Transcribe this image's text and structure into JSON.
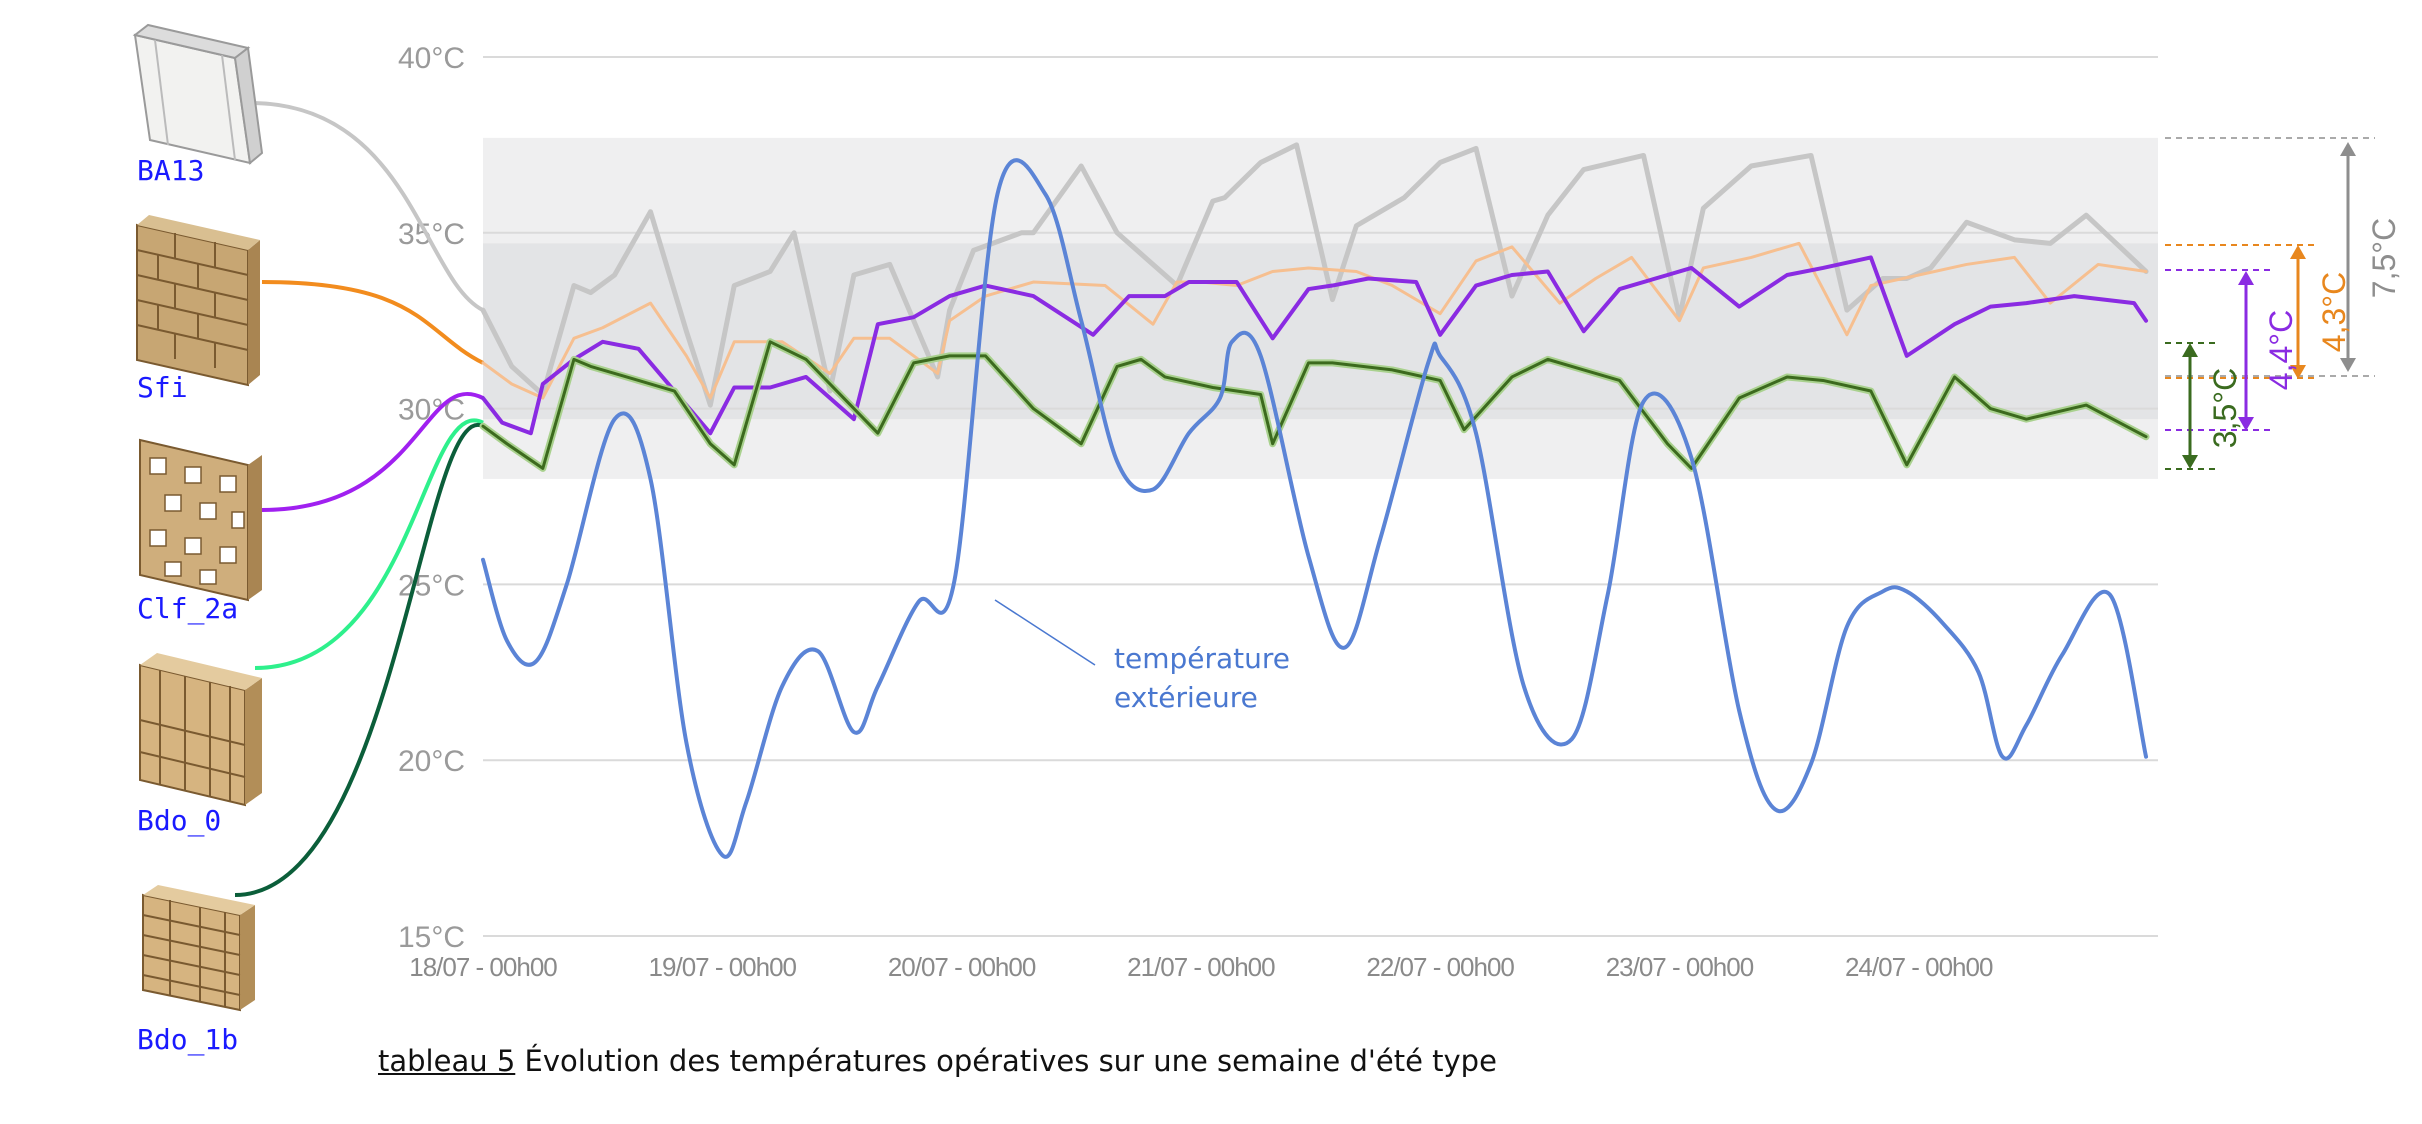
{
  "caption": {
    "tag": "tableau 5",
    "text": "Évolution des températures opératives sur une semaine d'été type"
  },
  "annotation": "température\nextérieure",
  "materials": [
    "BA13",
    "Sfi",
    "Clf_2a",
    "Bdo_0",
    "Bdo_1b"
  ],
  "deltas": [
    {
      "label": "7,5°C",
      "color": "#8e8e8e"
    },
    {
      "label": "4,3°C",
      "color": "#e8871e"
    },
    {
      "label": "4,4°C",
      "color": "#8a2be2"
    },
    {
      "label": "3,5°C",
      "color": "#3a6b1f"
    }
  ],
  "chart_data": {
    "type": "line",
    "ylim": [
      15,
      40
    ],
    "yticks": [
      "40°C",
      "35°C",
      "30°C",
      "25°C",
      "20°C",
      "15°C"
    ],
    "xlim": [
      0,
      7
    ],
    "xticks": [
      "18/07 - 00h00",
      "19/07 - 00h00",
      "20/07 - 00h00",
      "21/07 - 00h00",
      "22/07 - 00h00",
      "23/07 - 00h00",
      "24/07 - 00h00"
    ],
    "bands": [
      {
        "y0": 28.0,
        "y1": 37.7,
        "color": "#efeff0"
      },
      {
        "y0": 29.7,
        "y1": 34.7,
        "color": "#e3e4e6"
      }
    ],
    "series": [
      {
        "key": "BA13",
        "color": "#c6c6c6",
        "width": 5,
        "x": [
          0,
          0.12,
          0.25,
          0.38,
          0.45,
          0.55,
          0.7,
          0.85,
          0.95,
          1.05,
          1.2,
          1.3,
          1.45,
          1.55,
          1.7,
          1.9,
          1.95,
          2.05,
          2.25,
          2.3,
          2.5,
          2.65,
          2.9,
          3.05,
          3.1,
          3.25,
          3.4,
          3.55,
          3.65,
          3.85,
          4.0,
          4.15,
          4.3,
          4.45,
          4.6,
          4.85,
          5.0,
          5.1,
          5.3,
          5.55,
          5.7,
          5.85,
          5.95,
          6.05,
          6.2,
          6.4,
          6.55,
          6.7,
          6.95
        ],
        "y": [
          32.8,
          31.2,
          30.4,
          33.5,
          33.3,
          33.8,
          35.6,
          32.2,
          30.1,
          33.5,
          33.9,
          35.0,
          30.5,
          33.8,
          34.1,
          30.9,
          32.8,
          34.5,
          35.0,
          35.0,
          36.9,
          35.0,
          33.5,
          35.9,
          36.0,
          37.0,
          37.5,
          33.1,
          35.2,
          36.0,
          37.0,
          37.4,
          33.2,
          35.5,
          36.8,
          37.2,
          32.6,
          35.7,
          36.9,
          37.2,
          32.8,
          33.7,
          33.7,
          34.0,
          35.3,
          34.8,
          34.7,
          35.5,
          33.9
        ]
      },
      {
        "key": "Sfi",
        "color": "#f6bf90",
        "width": 3,
        "x": [
          0,
          0.12,
          0.25,
          0.38,
          0.5,
          0.7,
          0.85,
          0.95,
          1.05,
          1.25,
          1.45,
          1.55,
          1.7,
          1.9,
          1.95,
          2.1,
          2.3,
          2.6,
          2.8,
          2.9,
          3.0,
          3.15,
          3.3,
          3.45,
          3.65,
          3.8,
          4.0,
          4.15,
          4.3,
          4.5,
          4.65,
          4.8,
          5.0,
          5.1,
          5.3,
          5.5,
          5.7,
          5.8,
          6.0,
          6.2,
          6.4,
          6.55,
          6.75,
          6.95
        ],
        "y": [
          31.3,
          30.7,
          30.3,
          32.0,
          32.3,
          33.0,
          31.5,
          30.3,
          31.9,
          31.9,
          31.0,
          32.0,
          32.0,
          31.0,
          32.5,
          33.2,
          33.6,
          33.5,
          32.4,
          33.6,
          33.6,
          33.5,
          33.9,
          34.0,
          33.9,
          33.5,
          32.7,
          34.2,
          34.6,
          33.0,
          33.7,
          34.3,
          32.5,
          34.0,
          34.3,
          34.7,
          32.1,
          33.5,
          33.8,
          34.1,
          34.3,
          33.0,
          34.1,
          33.9
        ]
      },
      {
        "key": "Clf_2a",
        "color": "#8a2be2",
        "width": 4,
        "x": [
          0,
          0.08,
          0.2,
          0.25,
          0.38,
          0.5,
          0.65,
          0.8,
          0.95,
          1.05,
          1.2,
          1.35,
          1.55,
          1.65,
          1.8,
          1.95,
          2.1,
          2.3,
          2.55,
          2.7,
          2.85,
          2.95,
          3.15,
          3.3,
          3.45,
          3.55,
          3.7,
          3.9,
          4.0,
          4.15,
          4.3,
          4.45,
          4.6,
          4.75,
          4.95,
          5.05,
          5.25,
          5.45,
          5.6,
          5.8,
          5.95,
          6.15,
          6.3,
          6.45,
          6.65,
          6.9,
          6.95
        ],
        "y": [
          30.3,
          29.6,
          29.3,
          30.7,
          31.4,
          31.9,
          31.7,
          30.5,
          29.3,
          30.6,
          30.6,
          30.9,
          29.7,
          32.4,
          32.6,
          33.2,
          33.5,
          33.2,
          32.1,
          33.2,
          33.2,
          33.6,
          33.6,
          32.0,
          33.4,
          33.5,
          33.7,
          33.6,
          32.1,
          33.5,
          33.8,
          33.9,
          32.2,
          33.4,
          33.8,
          34.0,
          32.9,
          33.8,
          34.0,
          34.3,
          31.5,
          32.4,
          32.9,
          33.0,
          33.2,
          33.0,
          32.5
        ]
      },
      {
        "key": "Bdo_0",
        "color": "#a9d18e",
        "width": 7,
        "x": [
          0,
          0.1,
          0.25,
          0.38,
          0.45,
          0.65,
          0.8,
          0.95,
          1.05,
          1.2,
          1.35,
          1.55,
          1.65,
          1.8,
          1.95,
          2.1,
          2.3,
          2.5,
          2.65,
          2.75,
          2.85,
          3.05,
          3.25,
          3.3,
          3.45,
          3.55,
          3.8,
          4.0,
          4.1,
          4.3,
          4.45,
          4.6,
          4.75,
          4.95,
          5.05,
          5.25,
          5.45,
          5.6,
          5.8,
          5.95,
          6.15,
          6.3,
          6.45,
          6.7,
          6.95
        ],
        "y": [
          29.5,
          29.0,
          28.3,
          31.4,
          31.2,
          30.8,
          30.5,
          29.0,
          28.4,
          31.9,
          31.4,
          30.0,
          29.3,
          31.3,
          31.5,
          31.5,
          30.0,
          29.0,
          31.2,
          31.4,
          30.9,
          30.6,
          30.4,
          29.0,
          31.3,
          31.3,
          31.1,
          30.8,
          29.4,
          30.9,
          31.4,
          31.1,
          30.8,
          29.0,
          28.3,
          30.3,
          30.9,
          30.8,
          30.5,
          28.4,
          30.9,
          30.0,
          29.7,
          30.1,
          29.2
        ]
      },
      {
        "key": "Bdo_1b",
        "color": "#3c6a1e",
        "width": 3,
        "x": [
          0,
          0.1,
          0.25,
          0.38,
          0.45,
          0.65,
          0.8,
          0.95,
          1.05,
          1.2,
          1.35,
          1.55,
          1.65,
          1.8,
          1.95,
          2.1,
          2.3,
          2.5,
          2.65,
          2.75,
          2.85,
          3.05,
          3.25,
          3.3,
          3.45,
          3.55,
          3.8,
          4.0,
          4.1,
          4.3,
          4.45,
          4.6,
          4.75,
          4.95,
          5.05,
          5.25,
          5.45,
          5.6,
          5.8,
          5.95,
          6.15,
          6.3,
          6.45,
          6.7,
          6.95
        ],
        "y": [
          29.5,
          29.0,
          28.3,
          31.4,
          31.2,
          30.8,
          30.5,
          29.0,
          28.4,
          31.9,
          31.4,
          30.0,
          29.3,
          31.3,
          31.5,
          31.5,
          30.0,
          29.0,
          31.2,
          31.4,
          30.9,
          30.6,
          30.4,
          29.0,
          31.3,
          31.3,
          31.1,
          30.8,
          29.4,
          30.9,
          31.4,
          31.1,
          30.8,
          29.0,
          28.3,
          30.3,
          30.9,
          30.8,
          30.5,
          28.4,
          30.9,
          30.0,
          29.7,
          30.1,
          29.2
        ]
      },
      {
        "key": "ext",
        "color": "#5b84d6",
        "width": 4,
        "curved": true,
        "x": [
          0,
          0.1,
          0.22,
          0.35,
          0.55,
          0.7,
          0.85,
          1.0,
          1.1,
          1.25,
          1.4,
          1.55,
          1.65,
          1.82,
          1.97,
          2.15,
          2.35,
          2.5,
          2.65,
          2.8,
          2.95,
          3.08,
          3.13,
          3.25,
          3.45,
          3.6,
          3.75,
          3.95,
          4.0,
          4.15,
          4.35,
          4.55,
          4.7,
          4.85,
          5.05,
          5.25,
          5.4,
          5.55,
          5.7,
          5.85,
          5.95,
          6.1,
          6.25,
          6.35,
          6.45,
          6.6,
          6.8,
          6.95
        ],
        "y": [
          25.7,
          23.4,
          22.8,
          25.0,
          29.7,
          28.0,
          20.5,
          17.3,
          18.8,
          22.1,
          23.1,
          20.8,
          22.1,
          24.5,
          25.1,
          36.1,
          36.1,
          32.5,
          28.5,
          27.7,
          29.3,
          30.3,
          31.9,
          31.5,
          25.8,
          23.2,
          26.3,
          31.3,
          31.5,
          29.3,
          22.1,
          20.6,
          24.7,
          30.2,
          28.6,
          21.4,
          18.6,
          19.9,
          23.8,
          24.8,
          24.8,
          23.9,
          22.5,
          20.1,
          21.0,
          23.0,
          24.7,
          20.1
        ]
      }
    ]
  }
}
